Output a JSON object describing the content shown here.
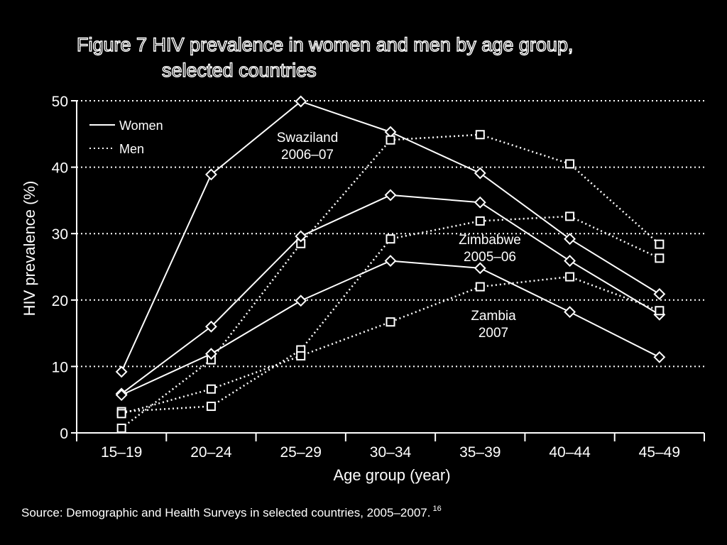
{
  "figure": {
    "title_line1": "Figure 7  HIV prevalence in women and men by age group,",
    "title_line2": "selected countries",
    "source_text": "Source: Demographic and Health Surveys in selected countries, 2005–2007.",
    "source_ref": "16"
  },
  "colors": {
    "background": "#000000",
    "foreground": "#ffffff"
  },
  "chart_data": {
    "type": "line",
    "xlabel": "Age group (year)",
    "ylabel": "HIV prevalence (%)",
    "ylim": [
      0,
      50
    ],
    "yticks": [
      0,
      10,
      20,
      30,
      40,
      50
    ],
    "categories": [
      "15–19",
      "20–24",
      "25–29",
      "30–34",
      "35–39",
      "40–44",
      "45–49"
    ],
    "grid": "horizontal dotted",
    "legend": {
      "position": "top-left",
      "entries": [
        {
          "label": "Women",
          "style": "solid"
        },
        {
          "label": "Men",
          "style": "dotted"
        }
      ]
    },
    "annotations": [
      {
        "line1": "Swaziland",
        "line2": "2006–07"
      },
      {
        "line1": "Zimbabwe",
        "line2": "2005–06"
      },
      {
        "line1": "Zambia",
        "line2": "2007"
      }
    ],
    "series": [
      {
        "country": "Swaziland",
        "sex": "Women",
        "style": "solid",
        "marker": "diamond",
        "values": [
          9.2,
          38.9,
          49.9,
          45.3,
          39.1,
          29.2,
          20.9
        ]
      },
      {
        "country": "Swaziland",
        "sex": "Men",
        "style": "dotted",
        "marker": "square",
        "values": [
          0.7,
          11.0,
          28.5,
          44.1,
          44.9,
          40.5,
          28.4
        ]
      },
      {
        "country": "Zimbabwe",
        "sex": "Women",
        "style": "solid",
        "marker": "diamond",
        "values": [
          5.9,
          16.0,
          29.6,
          35.8,
          34.7,
          25.9,
          17.8
        ]
      },
      {
        "country": "Zimbabwe",
        "sex": "Men",
        "style": "dotted",
        "marker": "square",
        "values": [
          3.2,
          4.0,
          12.5,
          29.2,
          31.9,
          32.6,
          26.3
        ]
      },
      {
        "country": "Zambia",
        "sex": "Women",
        "style": "solid",
        "marker": "diamond",
        "values": [
          5.7,
          11.9,
          19.9,
          25.9,
          24.8,
          18.2,
          11.4
        ]
      },
      {
        "country": "Zambia",
        "sex": "Men",
        "style": "dotted",
        "marker": "square",
        "values": [
          2.9,
          6.6,
          11.6,
          16.7,
          22.0,
          23.5,
          18.4
        ]
      }
    ]
  }
}
